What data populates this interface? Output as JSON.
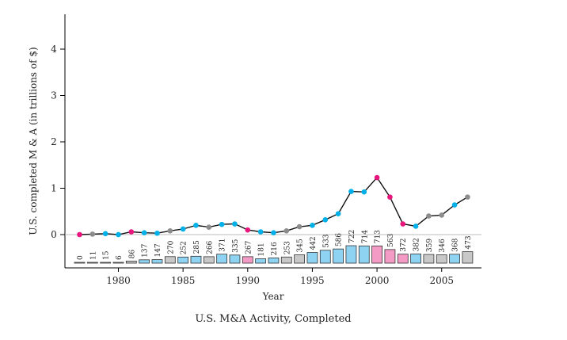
{
  "chart_data": {
    "type": "line",
    "title": "U.S. M&A Activity, Completed",
    "xlabel": "Year",
    "ylabel": "U.S. completed M & A (in trillions of $)",
    "xlim": [
      1976,
      2008
    ],
    "ylim": [
      -0.65,
      4.6
    ],
    "y_ticks": [
      0,
      1,
      2,
      3,
      4
    ],
    "x_ticks": [
      1980,
      1985,
      1990,
      1995,
      2000,
      2005
    ],
    "zero_line": true,
    "grid": false,
    "colors": {
      "line": "#111111",
      "blue": "#00B0E8",
      "pink": "#E8157C",
      "gray": "#8C8C8C",
      "bar_blue": "#8FD3F2",
      "bar_pink": "#F39BC4",
      "bar_gray": "#C8C8C8",
      "baseline": "#bbbbbb"
    },
    "series": [
      {
        "x": [
          1977,
          1978,
          1979,
          1980,
          1981,
          1982,
          1983,
          1984,
          1985,
          1986,
          1987,
          1988,
          1989,
          1990,
          1991,
          1992,
          1993,
          1994,
          1995,
          1996,
          1997,
          1998,
          1999,
          2000,
          2001,
          2002,
          2003,
          2004,
          2005,
          2006,
          2007
        ],
        "values": [
          0.0,
          0.01,
          0.02,
          0.0,
          0.06,
          0.04,
          0.03,
          0.08,
          0.12,
          0.2,
          0.16,
          0.22,
          0.23,
          0.1,
          0.06,
          0.04,
          0.08,
          0.17,
          0.2,
          0.32,
          0.45,
          0.93,
          0.92,
          1.23,
          0.81,
          0.23,
          0.18,
          0.4,
          0.42,
          0.64,
          0.81
        ],
        "point_colors": [
          "pink",
          "gray",
          "blue",
          "blue",
          "pink",
          "blue",
          "blue",
          "gray",
          "blue",
          "blue",
          "gray",
          "blue",
          "blue",
          "pink",
          "blue",
          "blue",
          "gray",
          "gray",
          "blue",
          "blue",
          "blue",
          "blue",
          "blue",
          "pink",
          "pink",
          "pink",
          "blue",
          "gray",
          "gray",
          "blue",
          "gray"
        ]
      }
    ],
    "bars": {
      "values": [
        0,
        11,
        15,
        6,
        86,
        137,
        147,
        270,
        252,
        285,
        266,
        371,
        335,
        267,
        181,
        216,
        253,
        345,
        442,
        533,
        586,
        722,
        714,
        713,
        563,
        372,
        382,
        359,
        346,
        368,
        473
      ],
      "labels": [
        "0",
        "11",
        "15",
        "6",
        "86",
        "137",
        "147",
        "270",
        "252",
        "285",
        "266",
        "371",
        "335",
        "267",
        "181",
        "216",
        "253",
        "345",
        "442",
        "533",
        "586",
        "722",
        "714",
        "713",
        "563",
        "372",
        "382",
        "359",
        "346",
        "368",
        "473"
      ],
      "colors": [
        "gray",
        "gray",
        "gray",
        "gray",
        "gray",
        "blue",
        "blue",
        "gray",
        "blue",
        "blue",
        "gray",
        "blue",
        "blue",
        "pink",
        "blue",
        "blue",
        "gray",
        "gray",
        "blue",
        "blue",
        "blue",
        "blue",
        "blue",
        "pink",
        "pink",
        "pink",
        "blue",
        "gray",
        "gray",
        "blue",
        "gray"
      ],
      "max": 722
    }
  }
}
